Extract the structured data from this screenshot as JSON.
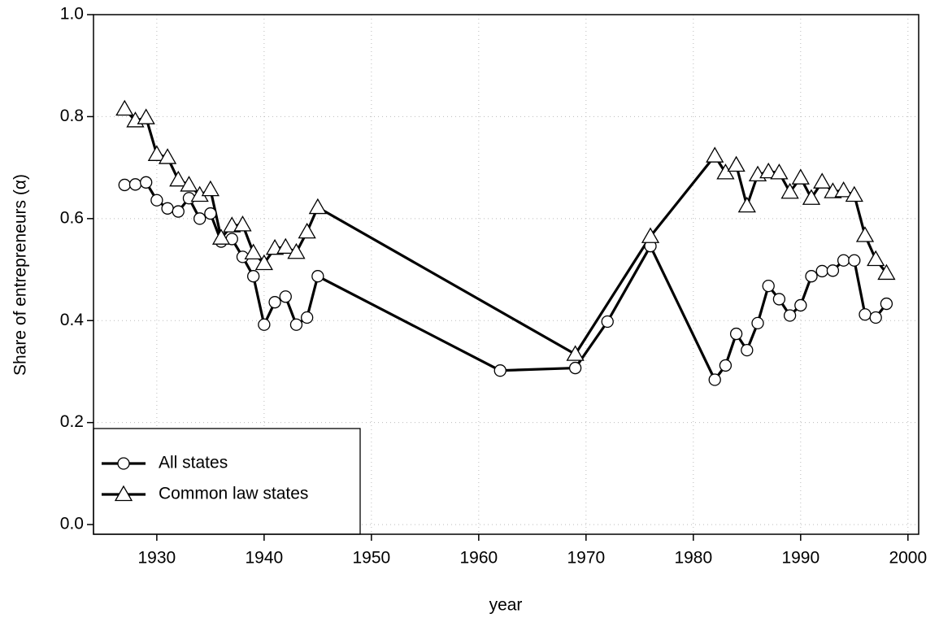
{
  "chart_data": {
    "type": "line",
    "xlabel": "year",
    "ylabel": "Share of entrepreneurs (α)",
    "xlim": [
      1924.1,
      2001
    ],
    "ylim": [
      -0.019,
      1.0
    ],
    "xticks": [
      1930,
      1940,
      1950,
      1960,
      1970,
      1980,
      1990,
      2000
    ],
    "yticks": [
      {
        "value": 0,
        "label": "0.0"
      },
      0.2,
      0.4,
      0.6,
      0.8,
      {
        "value": 1,
        "label": "1.0"
      }
    ],
    "grid": true,
    "legend": "bottom-left",
    "series": [
      {
        "name": "All states",
        "color": "#000000",
        "marker": "circle",
        "x": [
          1927,
          1928,
          1929,
          1930,
          1931,
          1932,
          1933,
          1934,
          1935,
          1936,
          1937,
          1938,
          1939,
          1940,
          1941,
          1942,
          1943,
          1944,
          1945,
          1962,
          1969,
          1972,
          1976,
          1982,
          1983,
          1984,
          1985,
          1986,
          1987,
          1988,
          1989,
          1990,
          1991,
          1992,
          1993,
          1994,
          1995,
          1996,
          1997,
          1998
        ],
        "values": [
          0.666,
          0.667,
          0.671,
          0.636,
          0.62,
          0.614,
          0.64,
          0.6,
          0.61,
          0.555,
          0.56,
          0.525,
          0.487,
          0.392,
          0.436,
          0.447,
          0.392,
          0.406,
          0.487,
          0.302,
          0.307,
          0.398,
          0.546,
          0.284,
          0.312,
          0.374,
          0.342,
          0.395,
          0.468,
          0.442,
          0.41,
          0.43,
          0.487,
          0.497,
          0.498,
          0.518,
          0.518,
          0.412,
          0.406,
          0.433
        ]
      },
      {
        "name": "Common law states",
        "color": "#000000",
        "marker": "triangle",
        "x": [
          1927,
          1928,
          1929,
          1930,
          1931,
          1932,
          1933,
          1934,
          1935,
          1936,
          1937,
          1938,
          1939,
          1940,
          1941,
          1942,
          1943,
          1944,
          1945,
          1969,
          1976,
          1982,
          1983,
          1984,
          1985,
          1986,
          1987,
          1988,
          1989,
          1990,
          1991,
          1992,
          1993,
          1994,
          1995,
          1996,
          1997,
          1998
        ],
        "values": [
          0.815,
          0.792,
          0.798,
          0.726,
          0.72,
          0.676,
          0.666,
          0.646,
          0.657,
          0.562,
          0.586,
          0.588,
          0.533,
          0.512,
          0.542,
          0.544,
          0.534,
          0.574,
          0.622,
          0.334,
          0.565,
          0.723,
          0.69,
          0.705,
          0.625,
          0.686,
          0.692,
          0.69,
          0.652,
          0.68,
          0.64,
          0.672,
          0.653,
          0.655,
          0.646,
          0.567,
          0.52,
          0.493
        ]
      }
    ]
  }
}
